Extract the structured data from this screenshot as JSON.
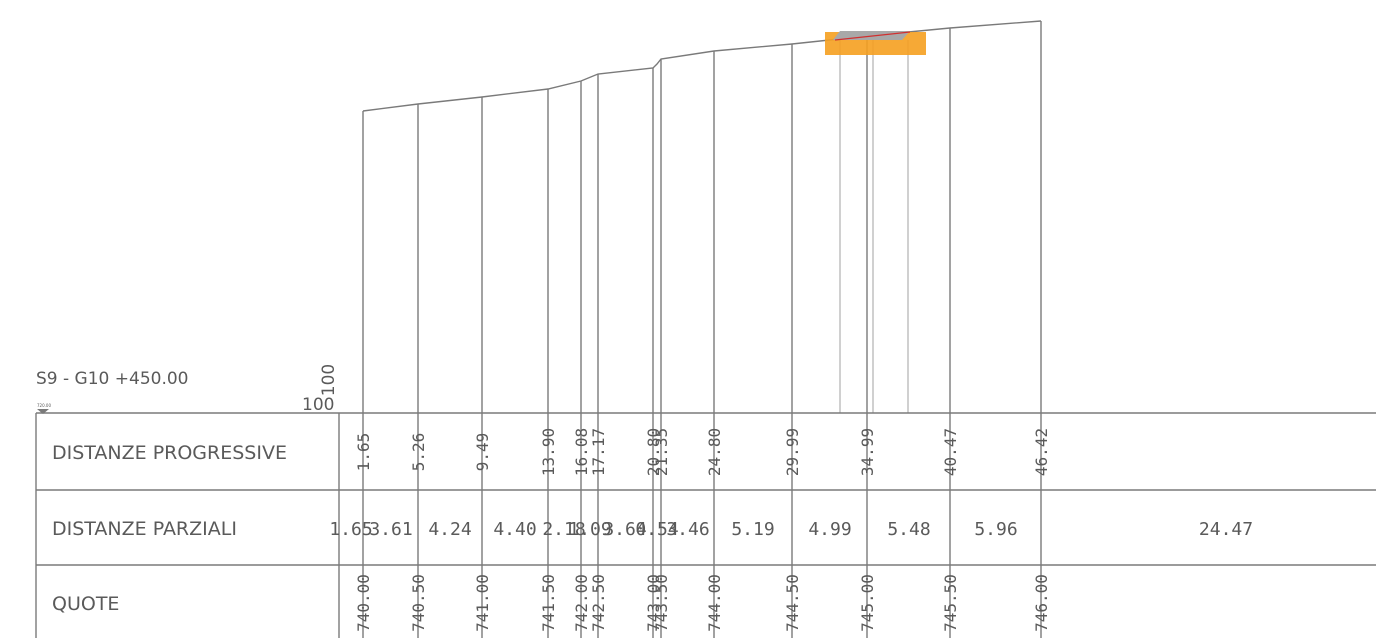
{
  "section": {
    "title": "S9 - G10   +450.00",
    "datum_label": "100",
    "datum_vertical_label": "100",
    "tiny_label": "720.00"
  },
  "rows": {
    "progressive": "DISTANZE PROGRESSIVE",
    "partial": "DISTANZE PARZIALI",
    "elevation": "QUOTE"
  },
  "stations": [
    {
      "progressive": "1.65",
      "elevation": "740.00"
    },
    {
      "progressive": "5.26",
      "elevation": "740.50"
    },
    {
      "progressive": "9.49",
      "elevation": "741.00"
    },
    {
      "progressive": "13.90",
      "elevation": "741.50"
    },
    {
      "progressive": "16.08",
      "elevation": "742.00"
    },
    {
      "progressive": "17.17",
      "elevation": "742.50"
    },
    {
      "progressive": "20.80",
      "elevation": "743.00"
    },
    {
      "progressive": "21.35",
      "elevation": "743.50"
    },
    {
      "progressive": "24.80",
      "elevation": "744.00"
    },
    {
      "progressive": "29.99",
      "elevation": "744.50"
    },
    {
      "progressive": "34.99",
      "elevation": "745.00"
    },
    {
      "progressive": "40.47",
      "elevation": "745.50"
    },
    {
      "progressive": "46.42",
      "elevation": "746.00"
    }
  ],
  "partials": [
    "1.65",
    "3.61",
    "4.24",
    "4.40",
    "2.18",
    "1.09",
    "3.64",
    "0.54",
    "3.46",
    "5.19",
    "4.99",
    "5.48",
    "5.96",
    "24.47"
  ],
  "colors": {
    "line": "#7a7a7a",
    "text": "#5a5a5a",
    "excavation": "#f5a020",
    "platform": "#a8a8a8",
    "design_line": "#d03030"
  }
}
